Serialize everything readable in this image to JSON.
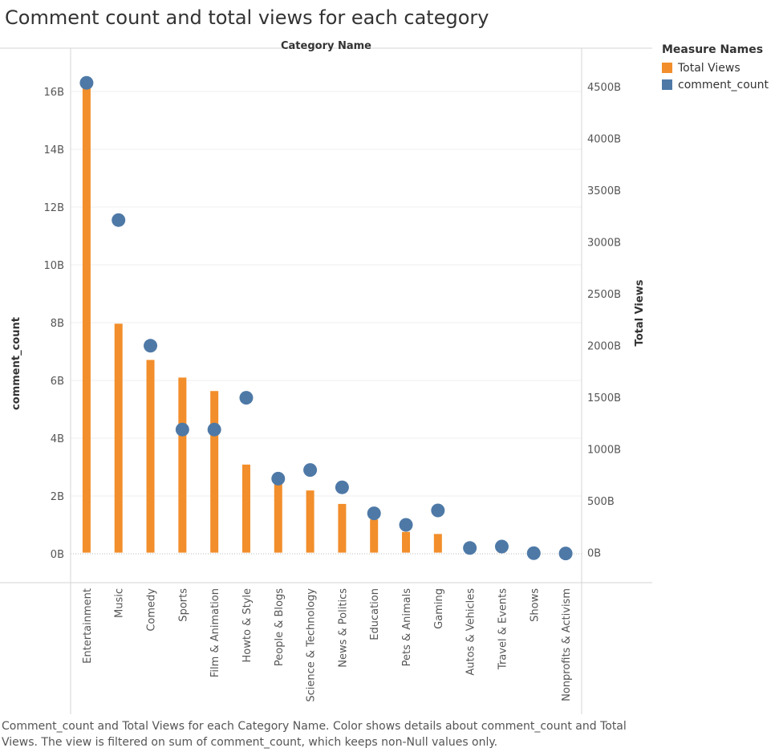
{
  "title": "Comment count and total views for each category",
  "caption": "Comment_count and Total Views for each Category Name.  Color shows details about comment_count and Total Views. The view is filtered on sum of comment_count, which keeps non-Null values only.",
  "legend": {
    "title": "Measure Names",
    "items": [
      {
        "label": "Total Views",
        "color": "#f28e2b"
      },
      {
        "label": "comment_count",
        "color": "#4e79a7"
      }
    ]
  },
  "chart_data": {
    "type": "bar",
    "column_header": "Category Name",
    "categories": [
      "Entertainment",
      "Music",
      "Comedy",
      "Sports",
      "Film & Animation",
      "Howto & Style",
      "People & Blogs",
      "Science & Technology",
      "News & Politics",
      "Education",
      "Pets & Animals",
      "Gaming",
      "Autos & Vehicles",
      "Travel & Events",
      "Shows",
      "Nonprofits & Activism"
    ],
    "series": [
      {
        "name": "Total Views",
        "mark": "bar",
        "axis": "right",
        "color": "#f28e2b",
        "values": [
          4580,
          2210,
          1860,
          1690,
          1560,
          850,
          740,
          600,
          470,
          320,
          200,
          180,
          65,
          45,
          5,
          3
        ]
      },
      {
        "name": "comment_count",
        "mark": "circle",
        "axis": "left",
        "color": "#4e79a7",
        "values": [
          16.3,
          11.55,
          7.2,
          4.3,
          4.3,
          5.4,
          2.6,
          2.9,
          2.3,
          1.4,
          1.0,
          1.5,
          0.2,
          0.25,
          0.02,
          0.01
        ]
      }
    ],
    "y_left": {
      "label": "comment_count",
      "ticks": [
        0,
        2,
        4,
        6,
        8,
        10,
        12,
        14,
        16
      ],
      "tick_labels": [
        "0B",
        "2B",
        "4B",
        "6B",
        "8B",
        "10B",
        "12B",
        "14B",
        "16B"
      ],
      "range": [
        -1,
        17.5
      ]
    },
    "y_right": {
      "label": "Total Views",
      "ticks": [
        0,
        500,
        1000,
        1500,
        2000,
        2500,
        3000,
        3500,
        4000,
        4500
      ],
      "tick_labels": [
        "0B",
        "500B",
        "1000B",
        "1500B",
        "2000B",
        "2500B",
        "3000B",
        "3500B",
        "4000B",
        "4500B"
      ],
      "range": [
        -290,
        4870
      ]
    },
    "grid": true,
    "legend_position": "top-right"
  }
}
